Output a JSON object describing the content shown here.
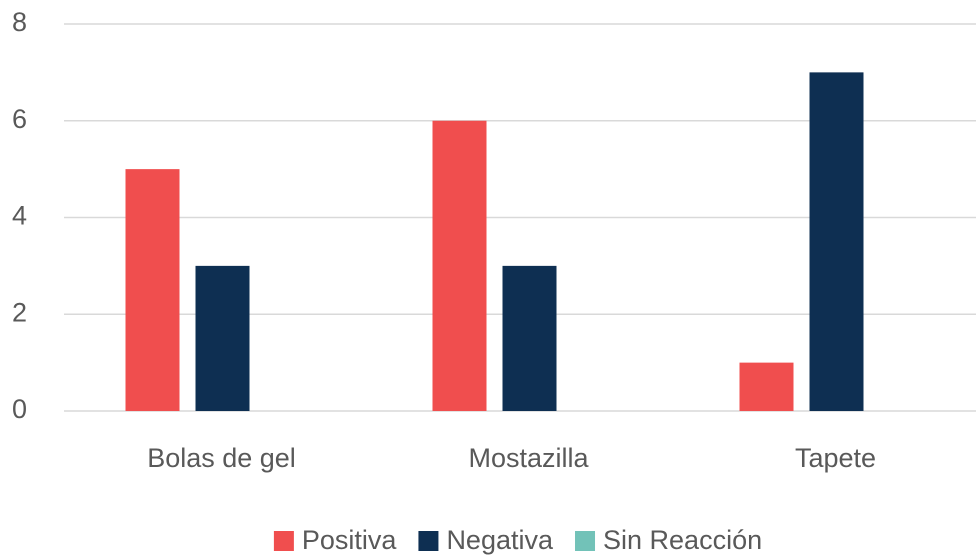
{
  "chart_data": {
    "type": "bar",
    "categories": [
      "Bolas de gel",
      "Mostazilla",
      "Tapete"
    ],
    "series": [
      {
        "name": "Positiva",
        "color": "#f04e4e",
        "values": [
          5,
          6,
          1
        ]
      },
      {
        "name": "Negativa",
        "color": "#0e2f52",
        "values": [
          3,
          3,
          7
        ]
      },
      {
        "name": "Sin Reacción",
        "color": "#72c2b8",
        "values": [
          0,
          0,
          0
        ]
      }
    ],
    "ylim": [
      0,
      8
    ],
    "yticks": [
      0,
      2,
      4,
      6,
      8
    ],
    "grid": true,
    "legend": "bottom"
  }
}
